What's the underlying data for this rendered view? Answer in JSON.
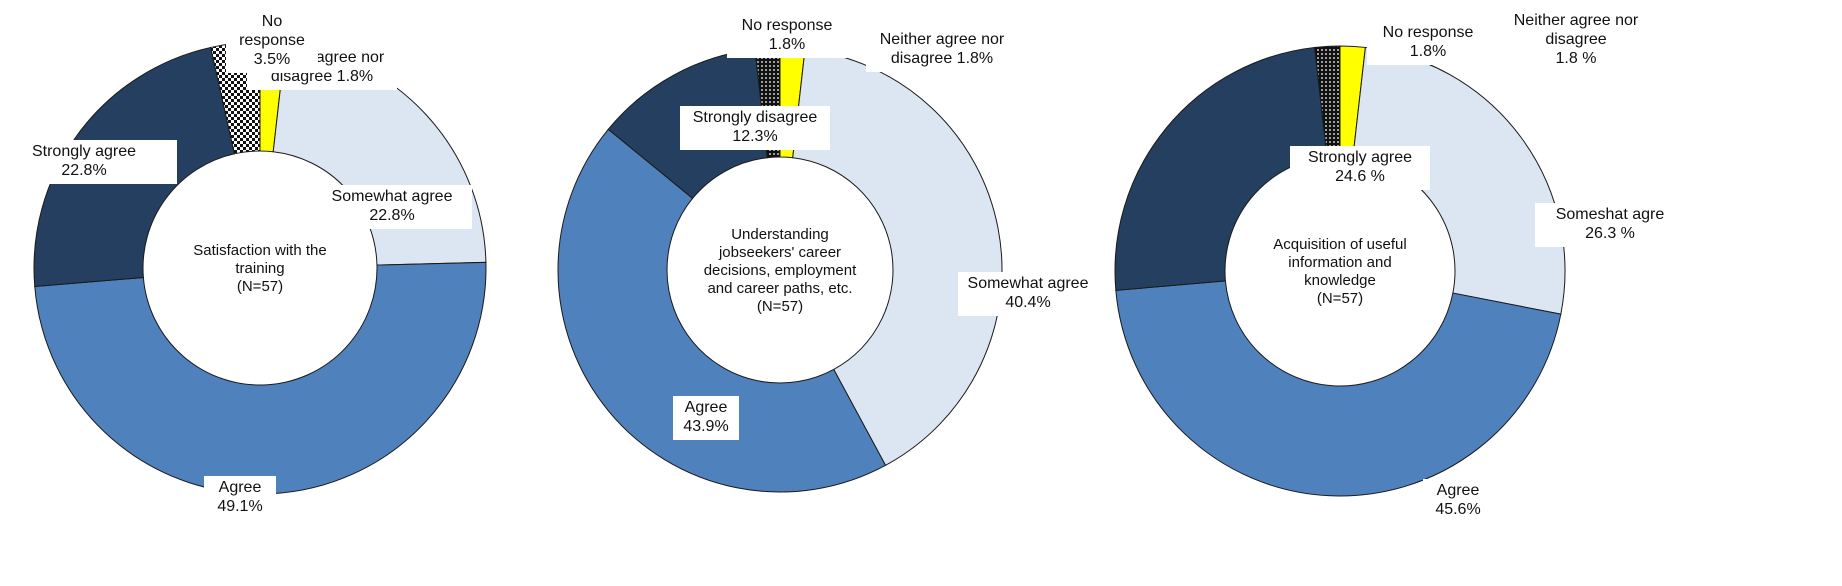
{
  "colors": {
    "strongly_agree": "#243F60",
    "agree": "#4F81BD",
    "somewhat_agree": "#DCE6F2",
    "neither": "#FFFF00",
    "no_response": "checker-pattern",
    "strongly_disagree": "#243F60",
    "outline": "#1a1a1a",
    "label_box": "#ffffff"
  },
  "chart_data": [
    {
      "type": "pie",
      "center_text": [
        "Satisfaction with the",
        "training",
        "(N=57)"
      ],
      "slices": [
        {
          "key": "neither",
          "value": 1.8,
          "label": [
            "Neither agree nor",
            "disagree 1.8%"
          ]
        },
        {
          "key": "somewhat_agree",
          "value": 22.8,
          "label": [
            "Somewhat agree",
            "22.8%"
          ]
        },
        {
          "key": "agree",
          "value": 49.1,
          "label": [
            "Agree",
            "49.1%"
          ]
        },
        {
          "key": "strongly_agree",
          "value": 22.8,
          "label": [
            "Strongly agree",
            "22.8%"
          ]
        },
        {
          "key": "no_response",
          "value": 3.5,
          "label": [
            "No",
            "response",
            "3.5%"
          ]
        }
      ]
    },
    {
      "type": "pie",
      "center_text": [
        "Understanding",
        "jobseekers' career",
        "decisions, employment",
        "and career paths, etc.",
        "(N=57)"
      ],
      "slices": [
        {
          "key": "neither",
          "value": 1.8,
          "label": [
            "Neither agree nor",
            "disagree 1.8%"
          ]
        },
        {
          "key": "somewhat_agree",
          "value": 40.4,
          "label": [
            "Somewhat agree",
            "40.4%"
          ]
        },
        {
          "key": "agree",
          "value": 43.9,
          "label": [
            "Agree",
            "43.9%"
          ]
        },
        {
          "key": "strongly_disagree",
          "value": 12.3,
          "label": [
            "Strongly disagree",
            "12.3%"
          ]
        },
        {
          "key": "no_response",
          "value": 1.8,
          "label": [
            "No response",
            "1.8%"
          ]
        }
      ]
    },
    {
      "type": "pie",
      "center_text": [
        "Acquisition of useful",
        "information and",
        "knowledge",
        "(N=57)"
      ],
      "slices": [
        {
          "key": "neither",
          "value": 1.8,
          "label": [
            "Neither agree nor",
            "disagree",
            "1.8 %"
          ]
        },
        {
          "key": "somewhat_agree",
          "value": 26.3,
          "label": [
            "Someshat agre",
            "26.3 %"
          ]
        },
        {
          "key": "agree",
          "value": 45.6,
          "label": [
            "Agree",
            "45.6%"
          ]
        },
        {
          "key": "strongly_agree",
          "value": 24.6,
          "label": [
            "Strongly agree",
            "24.6 %"
          ]
        },
        {
          "key": "no_response",
          "value": 1.8,
          "label": [
            "No response",
            "1.8%"
          ]
        }
      ]
    }
  ]
}
